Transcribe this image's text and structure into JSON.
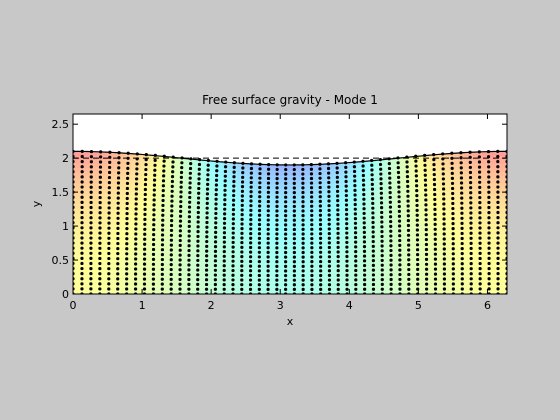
{
  "chart_data": {
    "type": "scatter",
    "title": "Free surface gravity - Mode 1",
    "xlabel": "x",
    "ylabel": "y",
    "xlim": [
      0,
      6.283
    ],
    "ylim": [
      0,
      2.65
    ],
    "xticks": [
      0,
      1,
      2,
      3,
      4,
      5,
      6
    ],
    "yticks": [
      0,
      0.5,
      1,
      1.5,
      2,
      2.5
    ],
    "xtick_labels": [
      "0",
      "1",
      "2",
      "3",
      "4",
      "5",
      "6"
    ],
    "ytick_labels": [
      "0",
      "0.5",
      "1",
      "1.5",
      "2",
      "2.5"
    ],
    "grid": false,
    "mean_depth": 2.0,
    "surface_amplitude": 0.1,
    "surface_profile": "y = 2 + 0.1*cos(x)",
    "mesh": {
      "columns": 50,
      "rows": 29,
      "marker": "dot",
      "marker_color": "#000000",
      "horizontal_motion_profile": "sin(x)",
      "color_field": "cos(x)*cosh(y)"
    },
    "dashed_line": {
      "y": 2.0,
      "style": "dashed",
      "color": "#000000"
    }
  },
  "colors": {
    "figure_background": "#c8c8c8",
    "axes_background": "#ffffff",
    "warm": "#ff9999",
    "neutral": "#ffff99",
    "cool": "#99ffff",
    "cold": "#9999ff"
  }
}
